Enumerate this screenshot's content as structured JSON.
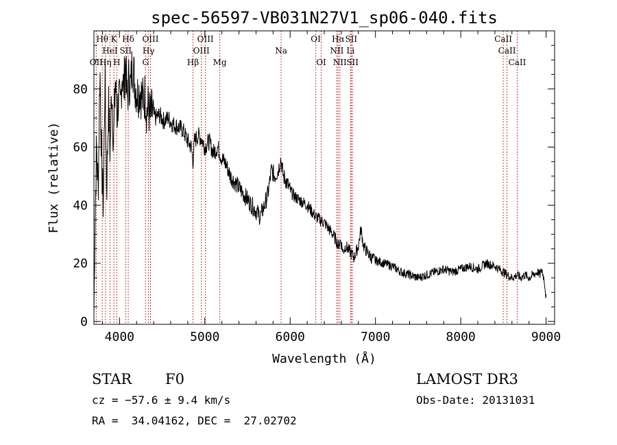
{
  "chart_data": {
    "type": "line",
    "title": "spec-56597-VB031N27V1_sp06-040.fits",
    "xlabel": "Wavelength (Å)",
    "ylabel": "Flux (relative)",
    "xlim": [
      3700,
      9100
    ],
    "ylim": [
      -1,
      100
    ],
    "xticks": [
      4000,
      5000,
      6000,
      7000,
      8000,
      9000
    ],
    "yticks": [
      0,
      20,
      40,
      60,
      80
    ],
    "xtick_labels": [
      "4000",
      "5000",
      "6000",
      "7000",
      "8000",
      "9000"
    ],
    "ytick_labels": [
      "0",
      "20",
      "40",
      "60",
      "80"
    ],
    "series": [
      {
        "name": "flux",
        "x": [
          3700,
          3710,
          3730,
          3750,
          3770,
          3790,
          3810,
          3830,
          3850,
          3870,
          3890,
          3910,
          3930,
          3950,
          3970,
          3990,
          4010,
          4030,
          4050,
          4070,
          4090,
          4110,
          4130,
          4150,
          4180,
          4210,
          4240,
          4270,
          4300,
          4320,
          4340,
          4360,
          4380,
          4420,
          4470,
          4520,
          4570,
          4620,
          4680,
          4740,
          4800,
          4840,
          4861,
          4880,
          4920,
          4960,
          5000,
          5050,
          5100,
          5150,
          5200,
          5250,
          5300,
          5350,
          5400,
          5450,
          5500,
          5550,
          5600,
          5650,
          5700,
          5740,
          5780,
          5820,
          5860,
          5890,
          5920,
          5960,
          6000,
          6050,
          6100,
          6150,
          6200,
          6250,
          6300,
          6350,
          6400,
          6450,
          6500,
          6540,
          6563,
          6590,
          6620,
          6650,
          6700,
          6750,
          6800,
          6830,
          6860,
          6900,
          6950,
          7000,
          7100,
          7200,
          7300,
          7400,
          7500,
          7600,
          7700,
          7800,
          7900,
          8000,
          8100,
          8200,
          8300,
          8400,
          8500,
          8542,
          8600,
          8662,
          8700,
          8750,
          8800,
          8850,
          8900,
          8930,
          8950,
          8980,
          9000
        ],
        "values": [
          2,
          30,
          60,
          45,
          88,
          55,
          40,
          85,
          45,
          75,
          58,
          82,
          60,
          84,
          70,
          78,
          72,
          86,
          80,
          90,
          75,
          84,
          80,
          90,
          82,
          78,
          80,
          76,
          78,
          72,
          74,
          70,
          72,
          70,
          71,
          69,
          70,
          68,
          67,
          66,
          62,
          60,
          55,
          62,
          64,
          63,
          60,
          62,
          58,
          60,
          56,
          54,
          50,
          48,
          46,
          44,
          42,
          40,
          38,
          36,
          40,
          44,
          52,
          50,
          52,
          56,
          50,
          48,
          45,
          43,
          42,
          41,
          40,
          38,
          36,
          35,
          34,
          32,
          30,
          28,
          26,
          28,
          24,
          26,
          24,
          22,
          26,
          32,
          26,
          24,
          22,
          21,
          20,
          19,
          17,
          16,
          15,
          16,
          17,
          18,
          17,
          18,
          19,
          18,
          20,
          19,
          17,
          16,
          15,
          16,
          15,
          16,
          15,
          16,
          17,
          16,
          18,
          14,
          8
        ],
        "color": "#000000"
      }
    ],
    "lines": [
      {
        "label": "OII",
        "x": 3727
      },
      {
        "label": "Hθ",
        "x": 3798
      },
      {
        "label": "Hη",
        "x": 3835
      },
      {
        "label": "HeI",
        "x": 3889
      },
      {
        "label": "K",
        "x": 3934
      },
      {
        "label": "H",
        "x": 3968
      },
      {
        "label": "SII",
        "x": 4072
      },
      {
        "label": "Hδ",
        "x": 4102
      },
      {
        "label": "G",
        "x": 4305
      },
      {
        "label": "Hγ",
        "x": 4340
      },
      {
        "label": "OIII",
        "x": 4363
      },
      {
        "label": "Hβ",
        "x": 4861
      },
      {
        "label": "OIII",
        "x": 4959
      },
      {
        "label": "OIII",
        "x": 5007
      },
      {
        "label": "Mg",
        "x": 5175
      },
      {
        "label": "Na",
        "x": 5894
      },
      {
        "label": "OI",
        "x": 6300
      },
      {
        "label": "OI",
        "x": 6364
      },
      {
        "label": "NII",
        "x": 6548
      },
      {
        "label": "Hα",
        "x": 6563
      },
      {
        "label": "NII",
        "x": 6583
      },
      {
        "label": "Li",
        "x": 6708
      },
      {
        "label": "SII",
        "x": 6716
      },
      {
        "label": "SII",
        "x": 6731
      },
      {
        "label": "CaII",
        "x": 8498
      },
      {
        "label": "CaII",
        "x": 8542
      },
      {
        "label": "CaII",
        "x": 8662
      }
    ],
    "line_label_texts": [
      {
        "text": "OII",
        "row": 3
      },
      {
        "text": "Hθ",
        "row": 1
      },
      {
        "text": "Hη",
        "row": 3
      },
      {
        "text": "HeI",
        "row": 2
      },
      {
        "text": "K",
        "row": 1
      },
      {
        "text": "H",
        "row": 3
      },
      {
        "text": "SII",
        "row": 2
      },
      {
        "text": "Hδ",
        "row": 1
      },
      {
        "text": "G",
        "row": 3
      },
      {
        "text": "Hγ",
        "row": 2
      },
      {
        "text": "OIII",
        "row": 1
      },
      {
        "text": "Hβ",
        "row": 3
      },
      {
        "text": "OIII",
        "row": 2
      },
      {
        "text": "OIII",
        "row": 1
      },
      {
        "text": "Mg",
        "row": 3
      },
      {
        "text": "Na",
        "row": 2
      },
      {
        "text": "OI",
        "row": 1
      },
      {
        "text": "OI",
        "row": 3
      },
      {
        "text": "NII",
        "row": 2
      },
      {
        "text": "Hα",
        "row": 1
      },
      {
        "text": "NII",
        "row": 3
      },
      {
        "text": "Li",
        "row": 2
      },
      {
        "text": "SII",
        "row": 1
      },
      {
        "text": "SII",
        "row": 3
      },
      {
        "text": "CaII",
        "row": 1
      },
      {
        "text": "CaII",
        "row": 2
      },
      {
        "text": "CaII",
        "row": 3
      }
    ],
    "grid": false,
    "line_color": "#cc3333"
  },
  "info": {
    "object_class": "STAR",
    "subclass": "F0",
    "cz": "cz = −57.6 ± 9.4 km/s",
    "coords": "RA =  34.04162, DEC =  27.02702",
    "survey": "LAMOST DR3",
    "obs_date": "Obs-Date: 20131031"
  }
}
